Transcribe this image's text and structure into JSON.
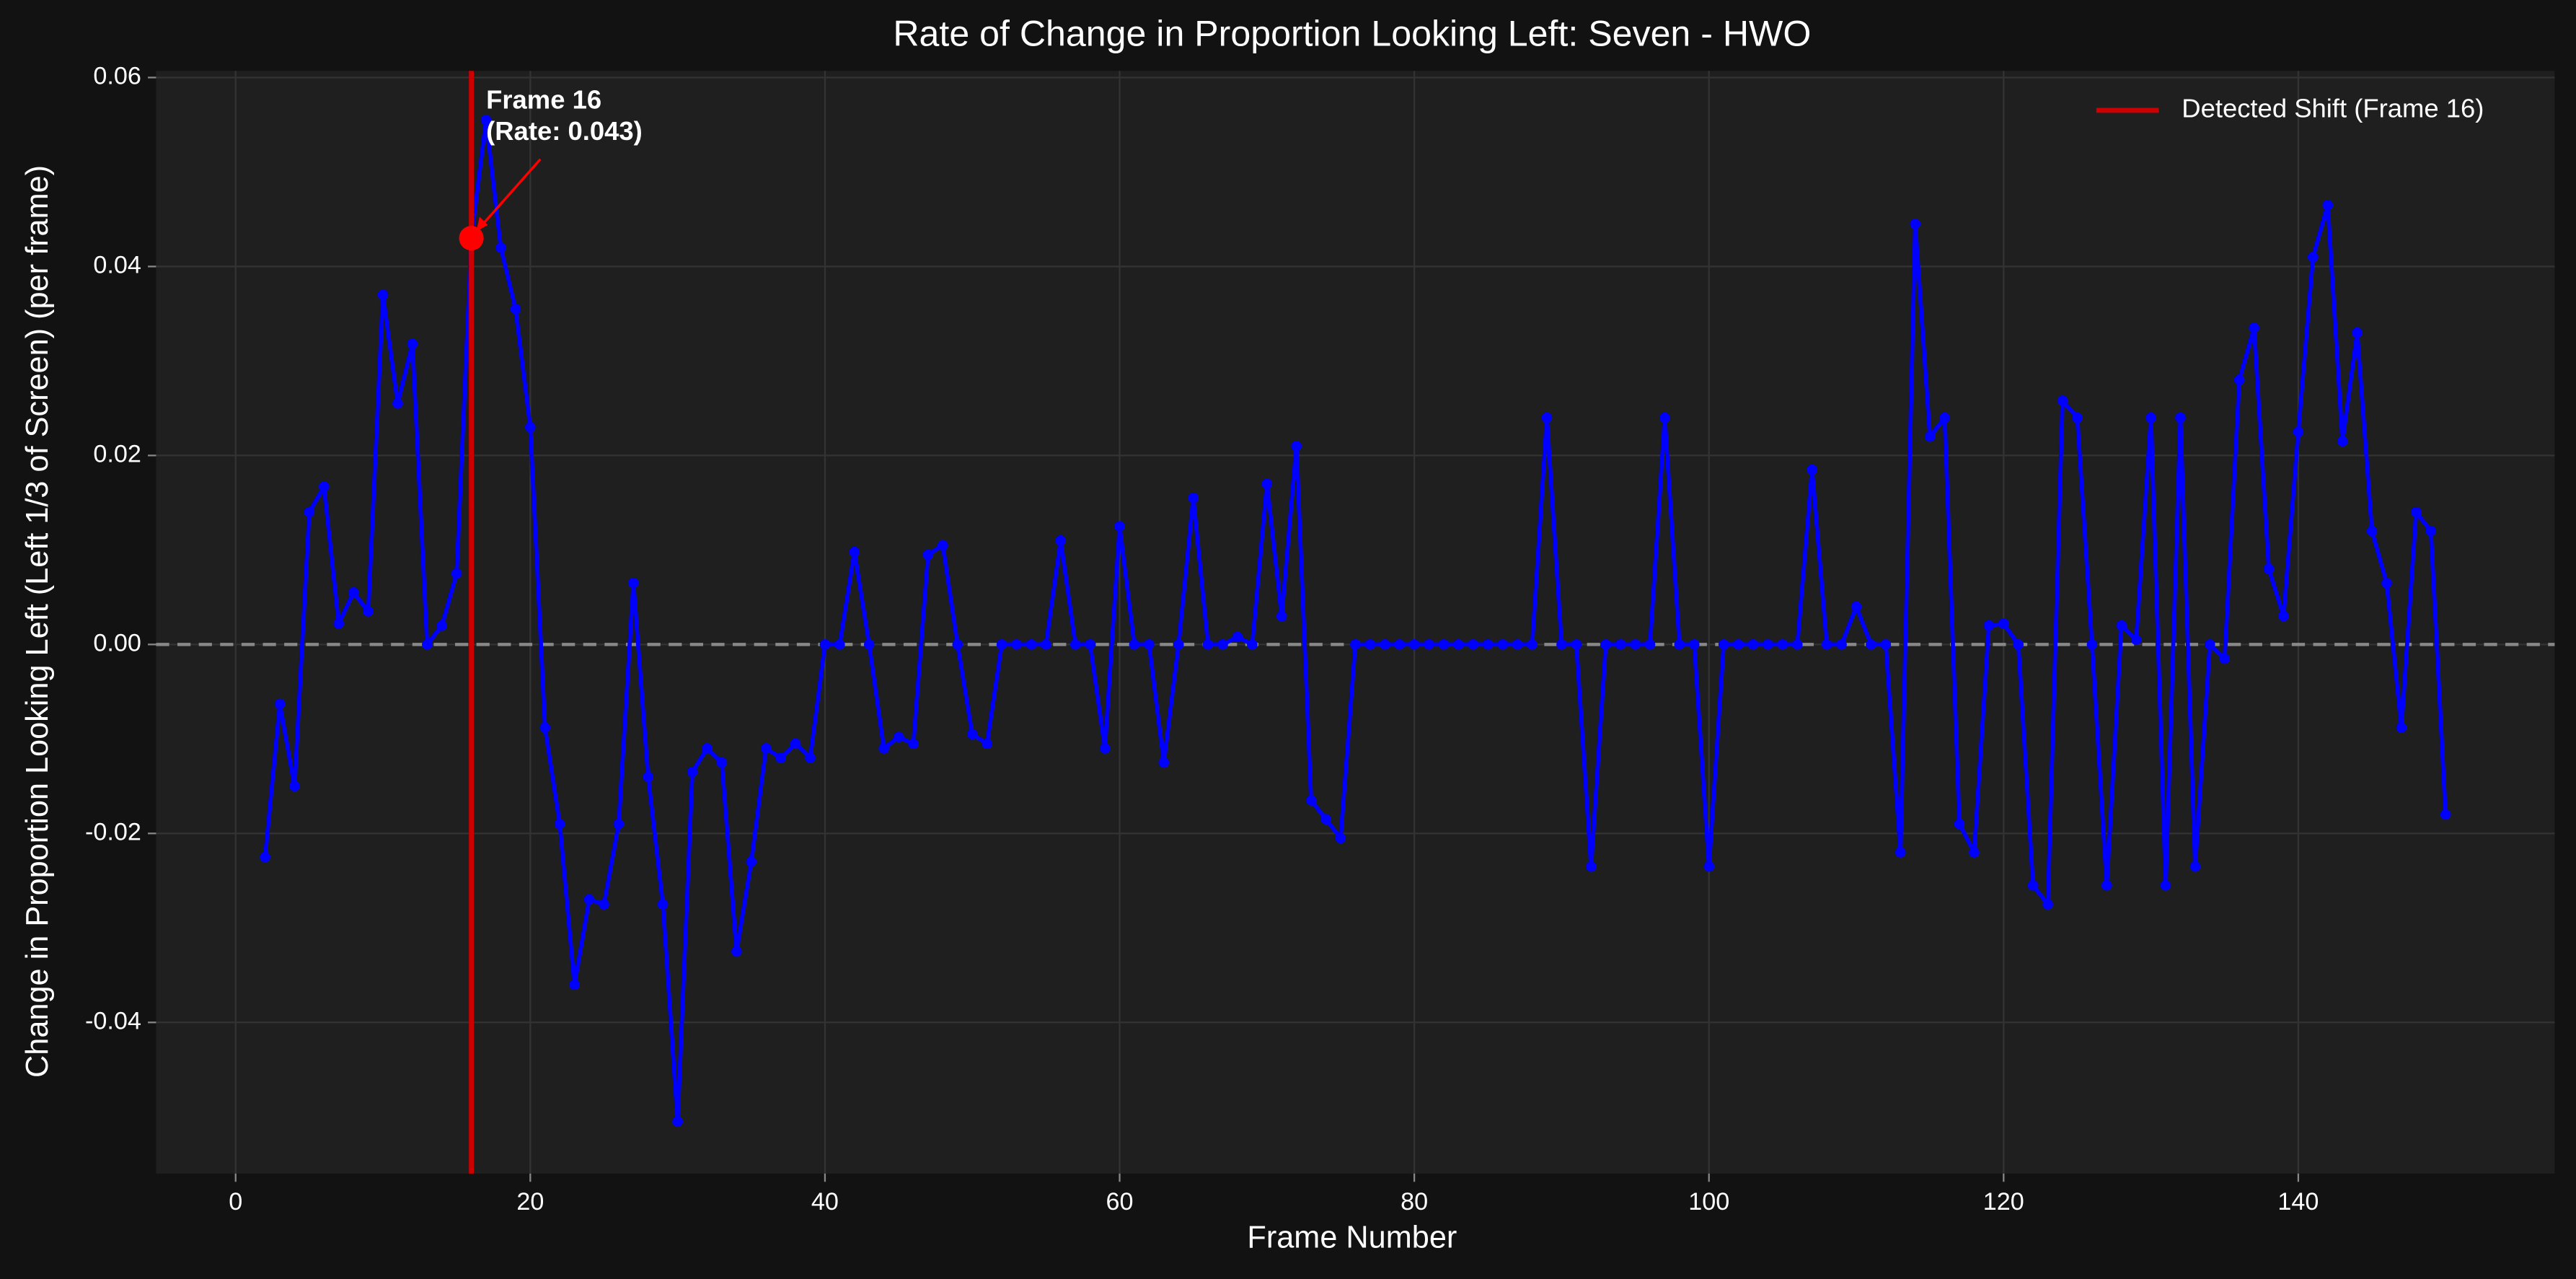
{
  "chart_data": {
    "type": "line",
    "title": "Rate of Change in Proportion Looking Left: Seven - HWO",
    "xlabel": "Frame Number",
    "ylabel": "Change in Proportion Looking Left (Left 1/3 of Screen) (per frame)",
    "x": [
      2,
      3,
      4,
      5,
      6,
      7,
      8,
      9,
      10,
      11,
      12,
      13,
      14,
      15,
      16,
      17,
      18,
      19,
      20,
      21,
      22,
      23,
      24,
      25,
      26,
      27,
      28,
      29,
      30,
      31,
      32,
      33,
      34,
      35,
      36,
      37,
      38,
      39,
      40,
      41,
      42,
      43,
      44,
      45,
      46,
      47,
      48,
      49,
      50,
      51,
      52,
      53,
      54,
      55,
      56,
      57,
      58,
      59,
      60,
      61,
      62,
      63,
      64,
      65,
      66,
      67,
      68,
      69,
      70,
      71,
      72,
      73,
      74,
      75,
      76,
      77,
      78,
      79,
      80,
      81,
      82,
      83,
      84,
      85,
      86,
      87,
      88,
      89,
      90,
      91,
      92,
      93,
      94,
      95,
      96,
      97,
      98,
      99,
      100,
      101,
      102,
      103,
      104,
      105,
      106,
      107,
      108,
      109,
      110,
      111,
      112,
      113,
      114,
      115,
      116,
      117,
      118,
      119,
      120,
      121,
      122,
      123,
      124,
      125,
      126,
      127,
      128,
      129,
      130,
      131,
      132,
      133,
      134,
      135,
      136,
      137,
      138,
      139,
      140,
      141,
      142,
      143,
      144,
      145,
      146,
      147,
      148,
      149,
      150
    ],
    "series": [
      {
        "name": "Rate of change",
        "color": "#0000ff",
        "values": [
          -0.0225,
          -0.0063,
          -0.015,
          0.014,
          0.0167,
          0.0022,
          0.0055,
          0.0035,
          0.037,
          0.0255,
          0.0318,
          0.0,
          0.002,
          0.0075,
          0.043,
          0.0555,
          0.042,
          0.0355,
          0.023,
          -0.0088,
          -0.019,
          -0.036,
          -0.027,
          -0.0275,
          -0.019,
          0.0065,
          -0.014,
          -0.0275,
          -0.0505,
          -0.0135,
          -0.011,
          -0.0125,
          -0.0325,
          -0.023,
          -0.011,
          -0.012,
          -0.0105,
          -0.012,
          0.0,
          0.0,
          0.0098,
          0.0,
          -0.011,
          -0.0098,
          -0.0105,
          0.0095,
          0.0105,
          0.0,
          -0.0095,
          -0.0105,
          0.0,
          0.0,
          0.0,
          0.0,
          0.011,
          0.0,
          0.0,
          -0.011,
          0.0125,
          0.0,
          0.0,
          -0.0125,
          0.0,
          0.0155,
          0.0,
          0.0,
          0.0008,
          0.0,
          0.017,
          0.003,
          0.021,
          -0.0165,
          -0.0185,
          -0.0205,
          0.0,
          0.0,
          0.0,
          0.0,
          0.0,
          0.0,
          0.0,
          0.0,
          0.0,
          0.0,
          0.0,
          0.0,
          0.0,
          0.024,
          0.0,
          0.0,
          -0.0235,
          0.0,
          0.0,
          0.0,
          0.0,
          0.024,
          0.0,
          0.0,
          -0.0235,
          0.0,
          0.0,
          0.0,
          0.0,
          0.0,
          0.0,
          0.0185,
          0.0,
          0.0,
          0.004,
          0.0,
          0.0,
          -0.022,
          0.0445,
          0.022,
          0.024,
          -0.019,
          -0.022,
          0.002,
          0.0022,
          0.0,
          -0.0255,
          -0.0275,
          0.0258,
          0.024,
          0.0,
          -0.0255,
          0.002,
          0.0005,
          0.024,
          -0.0255,
          0.024,
          -0.0235,
          0.0,
          -0.0015,
          0.028,
          0.0335,
          0.008,
          0.003,
          0.0225,
          0.041,
          0.0465,
          0.0215,
          0.033,
          0.012,
          0.0065,
          -0.0088,
          0.014,
          0.012,
          -0.018
        ]
      }
    ],
    "shift": {
      "name": "Detected Shift (Frame 16)",
      "x": 16,
      "color": "#cc0000"
    },
    "highlight": {
      "x": 16,
      "y": 0.043,
      "color": "#ff0000"
    },
    "annotation": [
      "Frame 16",
      "(Rate: 0.043)"
    ],
    "reference_line": 0,
    "xlim": [
      -5.4,
      157.4
    ],
    "ylim": [
      -0.056,
      0.0607
    ],
    "xticks": [
      0,
      20,
      40,
      60,
      80,
      100,
      120,
      140
    ],
    "yticks": [
      -0.04,
      -0.02,
      {
        "value": 0,
        "label": "0.00"
      },
      0.02,
      0.04,
      0.06
    ],
    "grid": true,
    "legend": "upper right"
  }
}
